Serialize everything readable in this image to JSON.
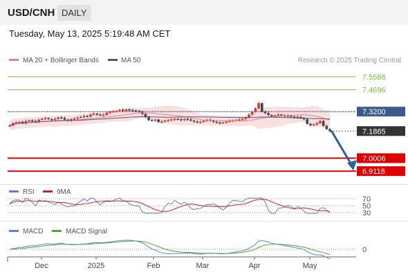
{
  "header": {
    "pair": "USD/CNH",
    "timeframe": "DAILY"
  },
  "datetime": "Tuesday, May 13, 2025 5:19:48 AM CET",
  "legend": {
    "ma20": "MA 20 + Bollinger Bands",
    "ma50": "MA 50",
    "credit": "Research © 2025 Trading Central"
  },
  "colors": {
    "ma20": "#f08080",
    "ma50": "#3d5a8c",
    "bullish": "#e03030",
    "bearish": "#444444",
    "resistance": "#7cbf3c",
    "support": "#e00000",
    "pivot": "#3d5a8c",
    "rsi": "#5b7fd6",
    "rsi_ma": "#d42020",
    "macd": "#5b7fd6",
    "macd_signal": "#4ea82a"
  },
  "chart_data": {
    "type": "candlestick",
    "x_labels": [
      "Dec",
      "2025",
      "Feb",
      "Mar",
      "Apr",
      "May"
    ],
    "ylim": [
      6.86,
      7.62
    ],
    "levels": [
      {
        "label": "7.5586",
        "value": 7.5586,
        "kind": "resistance"
      },
      {
        "label": "7.4696",
        "value": 7.4696,
        "kind": "resistance"
      },
      {
        "label": "7.3200",
        "value": 7.32,
        "kind": "pivot"
      },
      {
        "label": "7.1865",
        "value": 7.1865,
        "kind": "last"
      },
      {
        "label": "7.0006",
        "value": 7.0006,
        "kind": "support"
      },
      {
        "label": "6.9118",
        "value": 6.9118,
        "kind": "support"
      }
    ],
    "projection": {
      "from": 7.19,
      "to": 6.9118
    },
    "close": [
      7.225,
      7.24,
      7.245,
      7.25,
      7.24,
      7.255,
      7.26,
      7.255,
      7.25,
      7.265,
      7.27,
      7.275,
      7.268,
      7.262,
      7.27,
      7.28,
      7.276,
      7.265,
      7.258,
      7.268,
      7.272,
      7.28,
      7.284,
      7.29,
      7.286,
      7.3,
      7.306,
      7.3,
      7.295,
      7.298,
      7.312,
      7.318,
      7.322,
      7.325,
      7.332,
      7.326,
      7.335,
      7.33,
      7.328,
      7.325,
      7.318,
      7.304,
      7.282,
      7.262,
      7.258,
      7.265,
      7.248,
      7.252,
      7.258,
      7.262,
      7.266,
      7.27,
      7.268,
      7.262,
      7.27,
      7.266,
      7.258,
      7.252,
      7.246,
      7.25,
      7.258,
      7.264,
      7.258,
      7.25,
      7.244,
      7.242,
      7.246,
      7.252,
      7.256,
      7.26,
      7.262,
      7.266,
      7.27,
      7.278,
      7.3,
      7.318,
      7.342,
      7.378,
      7.32,
      7.31,
      7.296,
      7.288,
      7.292,
      7.3,
      7.294,
      7.288,
      7.292,
      7.285,
      7.28,
      7.284,
      7.276,
      7.268,
      7.236,
      7.226,
      7.232,
      7.24,
      7.256,
      7.222,
      7.2,
      7.1865
    ],
    "rsi": {
      "levels": [
        70,
        50,
        30
      ],
      "labels": [
        "70",
        "50",
        "30"
      ],
      "series_name": "RSI",
      "ma_name": "9MA"
    },
    "macd": {
      "zero_label": "0",
      "macd_name": "MACD",
      "signal_name": "MACD Signal"
    }
  }
}
